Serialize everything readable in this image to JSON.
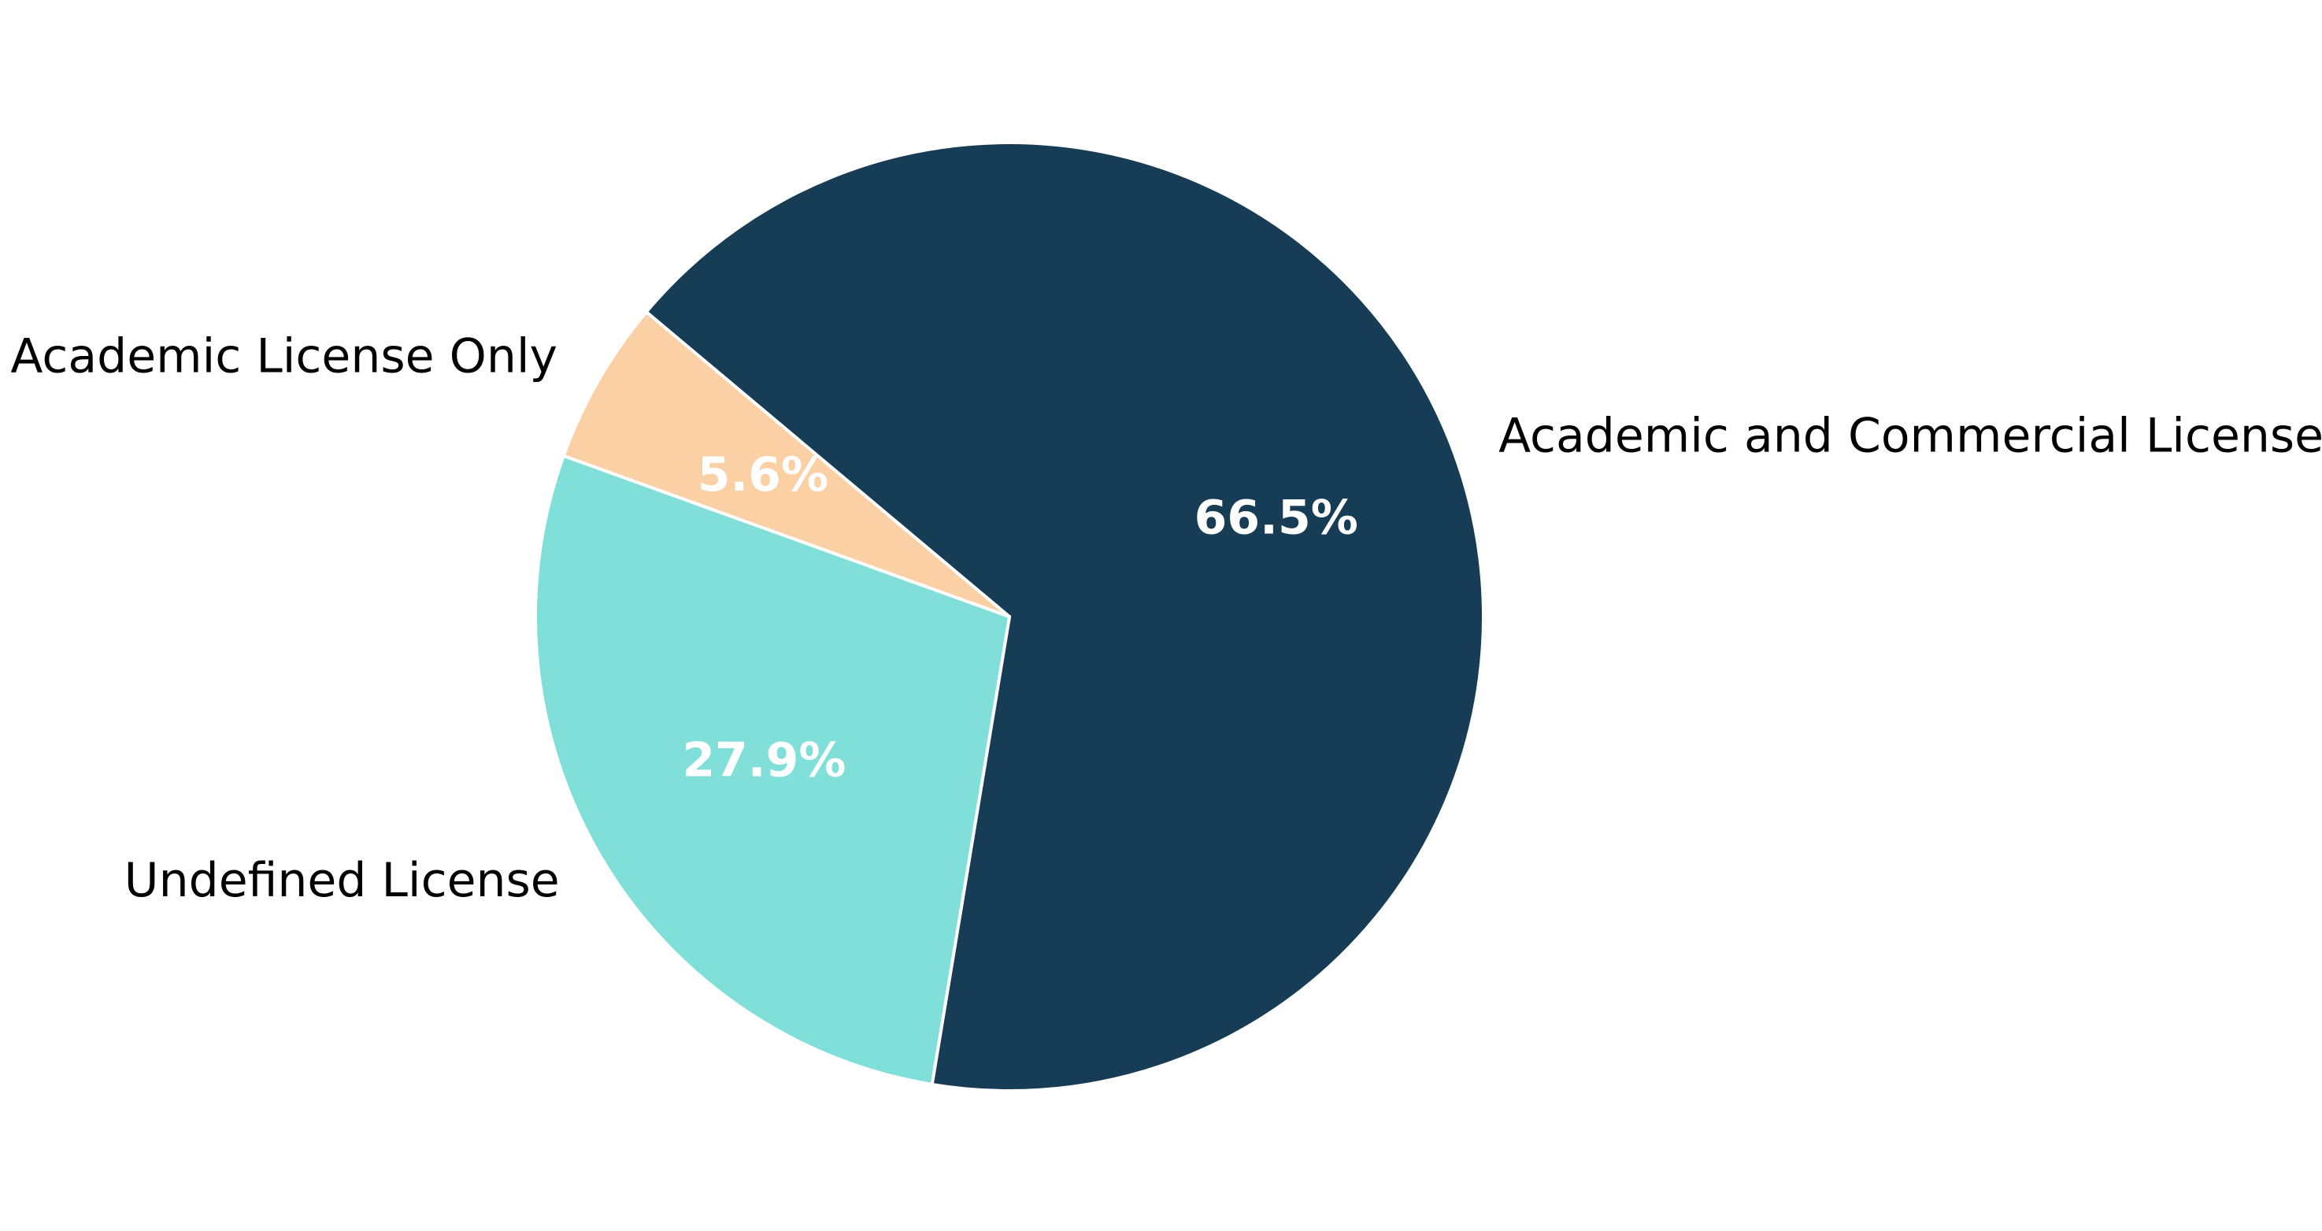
{
  "chart_data": {
    "type": "pie",
    "title": "",
    "slices": [
      {
        "label": "Academic and Commercial License",
        "value": 66.5,
        "pct_label": "66.5%",
        "color": "#173c55"
      },
      {
        "label": "Undefined License",
        "value": 27.9,
        "pct_label": "27.9%",
        "color": "#81dfd9"
      },
      {
        "label": "Academic License Only",
        "value": 5.6,
        "pct_label": "5.6%",
        "color": "#fad0a4"
      }
    ],
    "start_angle_deg": 140,
    "direction": "clockwise",
    "legend": "none"
  }
}
